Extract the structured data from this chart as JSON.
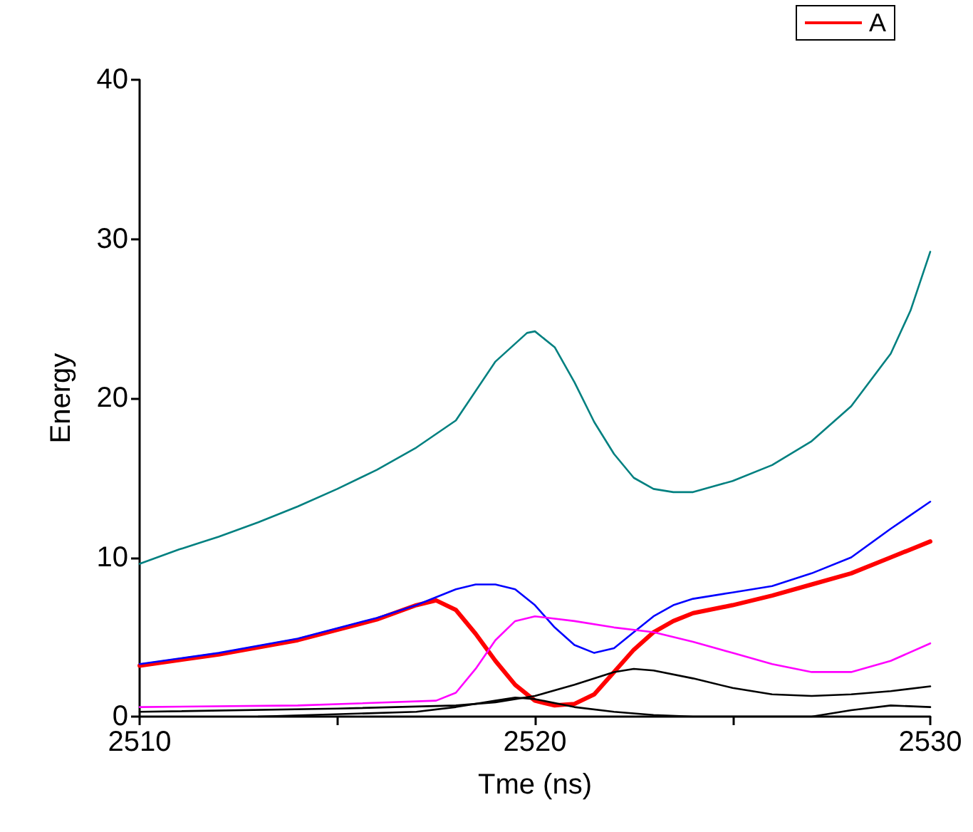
{
  "chart_data": {
    "type": "line",
    "xlabel": "Tme (ns)",
    "ylabel": "Energy",
    "xlim": [
      2510,
      2530
    ],
    "ylim": [
      0,
      40
    ],
    "xticks": [
      2510,
      {
        "value": 2515,
        "label": null
      },
      2520,
      {
        "value": 2525,
        "label": null
      },
      2530
    ],
    "yticks": [
      0,
      10,
      20,
      30,
      40
    ],
    "grid": false,
    "legend": "top right",
    "marker": "none",
    "line_style": "solid",
    "series": [
      {
        "color": "#008080",
        "x": [
          2510,
          2511,
          2512,
          2513,
          2514,
          2515,
          2516,
          2517,
          2518,
          2519,
          2519.8,
          2520,
          2520.5,
          2521,
          2521.5,
          2522,
          2522.5,
          2523,
          2523.5,
          2524,
          2525,
          2526,
          2527,
          2528,
          2529,
          2529.5,
          2530
        ],
        "values": [
          9.6,
          10.5,
          11.3,
          12.2,
          13.2,
          14.3,
          15.5,
          16.9,
          18.6,
          22.3,
          24.1,
          24.2,
          23.2,
          21.0,
          18.5,
          16.5,
          15.0,
          14.3,
          14.1,
          14.1,
          14.8,
          15.8,
          17.3,
          19.5,
          22.8,
          25.5,
          29.2
        ]
      },
      {
        "color": "#0000ff",
        "x": [
          2510,
          2512,
          2514,
          2516,
          2517,
          2518,
          2518.5,
          2519,
          2519.5,
          2520,
          2520.5,
          2521,
          2521.5,
          2522,
          2522.5,
          2523,
          2523.5,
          2524,
          2525,
          2526,
          2527,
          2528,
          2529,
          2530
        ],
        "values": [
          3.3,
          4.0,
          4.9,
          6.2,
          7.0,
          8.0,
          8.3,
          8.3,
          8.0,
          7.0,
          5.6,
          4.5,
          4.0,
          4.3,
          5.3,
          6.3,
          7.0,
          7.4,
          7.8,
          8.2,
          9.0,
          10.0,
          11.8,
          13.5
        ]
      },
      {
        "name": "A",
        "color": "#ff0000",
        "x": [
          2510,
          2512,
          2514,
          2516,
          2517,
          2517.5,
          2518,
          2518.5,
          2519,
          2519.5,
          2520,
          2520.5,
          2521,
          2521.5,
          2522,
          2522.5,
          2523,
          2523.5,
          2524,
          2525,
          2526,
          2527,
          2528,
          2529,
          2530
        ],
        "values": [
          3.2,
          3.9,
          4.8,
          6.1,
          7.0,
          7.3,
          6.7,
          5.2,
          3.5,
          2.0,
          1.0,
          0.7,
          0.8,
          1.4,
          2.8,
          4.2,
          5.3,
          6.0,
          6.5,
          7.0,
          7.6,
          8.3,
          9.0,
          10.0,
          11.0
        ]
      },
      {
        "color": "#ff00ff",
        "x": [
          2510,
          2514,
          2517.5,
          2518,
          2518.5,
          2519,
          2519.5,
          2520,
          2521,
          2522,
          2523,
          2524,
          2525,
          2526,
          2527,
          2528,
          2529,
          2530
        ],
        "values": [
          0.6,
          0.7,
          1.0,
          1.5,
          3.0,
          4.8,
          6.0,
          6.3,
          6.0,
          5.6,
          5.3,
          4.7,
          4.0,
          3.3,
          2.8,
          2.8,
          3.5,
          4.6
        ]
      },
      {
        "color": "#000000",
        "x": [
          2510,
          2515,
          2518,
          2519,
          2520,
          2521,
          2522,
          2522.5,
          2523,
          2524,
          2525,
          2526,
          2527,
          2528,
          2529,
          2530
        ],
        "values": [
          0.3,
          0.5,
          0.7,
          0.9,
          1.3,
          2.0,
          2.8,
          3.0,
          2.9,
          2.4,
          1.8,
          1.4,
          1.3,
          1.4,
          1.6,
          1.9
        ]
      },
      {
        "color": "#000000",
        "x": [
          2513,
          2517,
          2518,
          2519,
          2519.5,
          2520,
          2521,
          2522,
          2523,
          2524,
          2527,
          2528,
          2529,
          2530
        ],
        "values": [
          0.0,
          0.3,
          0.6,
          1.0,
          1.2,
          1.1,
          0.6,
          0.3,
          0.1,
          0.0,
          0.0,
          0.4,
          0.7,
          0.6
        ]
      }
    ]
  }
}
